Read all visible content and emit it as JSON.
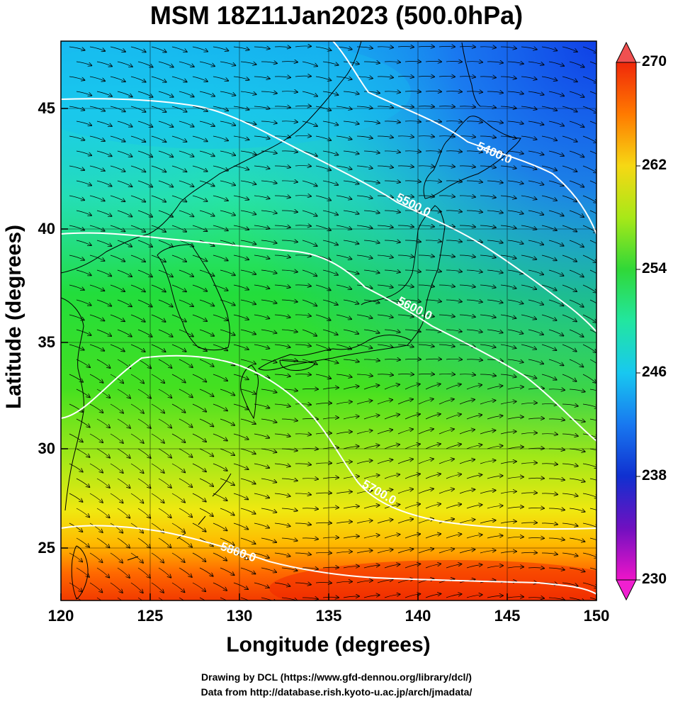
{
  "title": "MSM 18Z11Jan2023 (500.0hPa)",
  "xaxis": {
    "label": "Longitude (degrees)",
    "ticks": [
      "120",
      "125",
      "130",
      "135",
      "140",
      "145",
      "150"
    ]
  },
  "yaxis": {
    "label": "Latitude  (degrees)",
    "ticks": [
      "45",
      "40",
      "35",
      "30",
      "25"
    ]
  },
  "colorbar": {
    "ticks": [
      "270",
      "262",
      "254",
      "246",
      "238",
      "230"
    ],
    "range": [
      230,
      270
    ]
  },
  "contours": [
    {
      "value": 5400,
      "label": "5400.0"
    },
    {
      "value": 5500,
      "label": "5500.0"
    },
    {
      "value": 5600,
      "label": "5600.0"
    },
    {
      "value": 5700,
      "label": "5700.0"
    },
    {
      "value": 5800,
      "label": "5800.0"
    }
  ],
  "credits": {
    "line1": "Drawing by DCL (https://www.gfd-dennou.org/library/dcl/)",
    "line2": "Data from http://database.rish.kyoto-u.ac.jp/arch/jmadata/"
  },
  "map_extent": {
    "lon": [
      120,
      150
    ],
    "lat": [
      22.5,
      47.6
    ]
  },
  "colors": {
    "contour": "#ffffff",
    "coast": "#000000",
    "vectors": "#000000"
  }
}
